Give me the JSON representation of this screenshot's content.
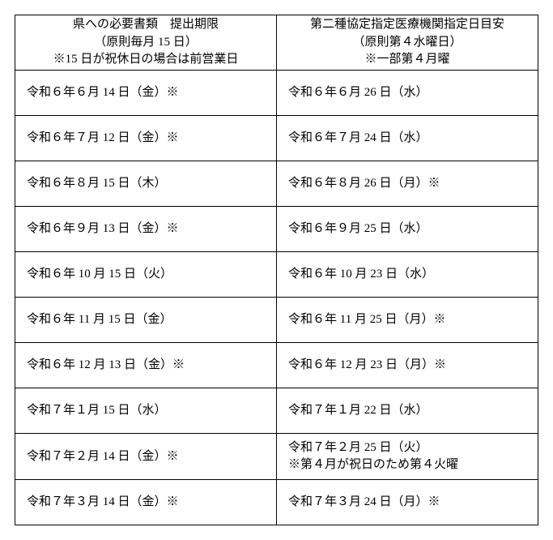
{
  "header": {
    "left": {
      "line1": "県への必要書類　提出期限",
      "line2": "（原則毎月 15 日）",
      "line3": "※15 日が祝休日の場合は前営業日"
    },
    "right": {
      "line1": "第二種協定指定医療機関指定日目安",
      "line2": "（原則第４水曜日）",
      "line3": "※一部第４月曜"
    }
  },
  "rows": [
    {
      "left": "令和６年６月 14 日（金）※",
      "right": "令和６年６月 26 日（水）"
    },
    {
      "left": "令和６年７月 12 日（金）※",
      "right": "令和６年７月 24 日（水）"
    },
    {
      "left": "令和６年８月 15 日（木）",
      "right": "令和６年８月 26 日（月）※"
    },
    {
      "left": "令和６年９月 13 日（金）※",
      "right": "令和６年９月 25 日（水）"
    },
    {
      "left": "令和６年 10 月 15 日（火）",
      "right": "令和６年 10 月 23 日（水）"
    },
    {
      "left": "令和６年 11 月 15 日（金）",
      "right": "令和６年 11 月 25 日（月）※"
    },
    {
      "left": "令和６年 12 月 13 日（金）※",
      "right": "令和６年 12 月 23 日（月）※"
    },
    {
      "left": "令和７年１月 15 日（水）",
      "right": "令和７年１月 22 日（水）"
    },
    {
      "left": "令和７年２月 14 日（金）※",
      "right_line1": "令和７年２月 25 日（火）",
      "right_line2": "※第４月が祝日のため第４火曜",
      "multiline": true
    },
    {
      "left": "令和７年３月 14 日（金）※",
      "right": "令和７年３月 24 日（月）※"
    }
  ]
}
